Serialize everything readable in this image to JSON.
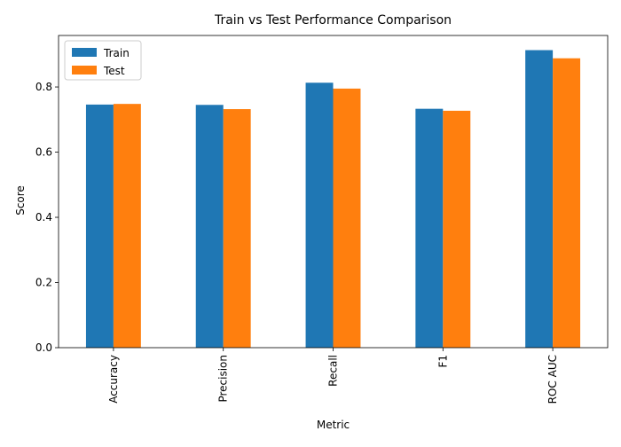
{
  "chart_data": {
    "type": "bar",
    "title": "Train vs Test Performance Comparison",
    "xlabel": "Metric",
    "ylabel": "Score",
    "categories": [
      "Accuracy",
      "Precision",
      "Recall",
      "F1",
      "ROC AUC"
    ],
    "series": [
      {
        "name": "Train",
        "color": "#1f77b4",
        "values": [
          0.746,
          0.745,
          0.813,
          0.733,
          0.913
        ]
      },
      {
        "name": "Test",
        "color": "#ff7f0e",
        "values": [
          0.748,
          0.732,
          0.795,
          0.727,
          0.888
        ]
      }
    ],
    "ylim": [
      0,
      0.958
    ],
    "yticks": [
      0.0,
      0.2,
      0.4,
      0.6,
      0.8
    ],
    "ytick_labels": [
      "0.0",
      "0.2",
      "0.4",
      "0.6",
      "0.8"
    ],
    "grid": false,
    "legend_position": "top-left"
  }
}
